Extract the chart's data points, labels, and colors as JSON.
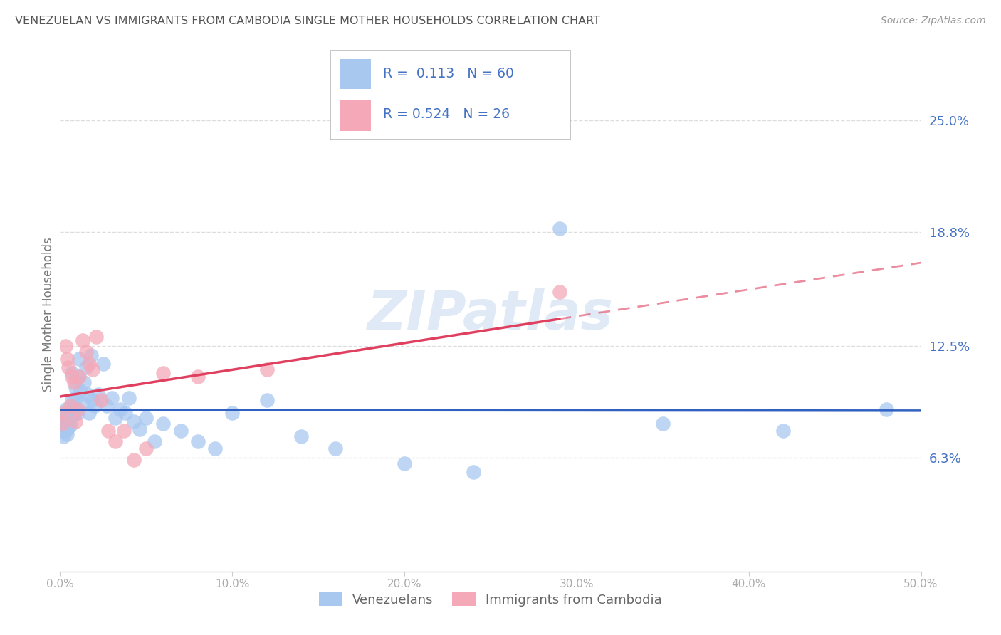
{
  "title": "VENEZUELAN VS IMMIGRANTS FROM CAMBODIA SINGLE MOTHER HOUSEHOLDS CORRELATION CHART",
  "source": "Source: ZipAtlas.com",
  "ylabel": "Single Mother Households",
  "ytick_labels": [
    "6.3%",
    "12.5%",
    "18.8%",
    "25.0%"
  ],
  "ytick_values": [
    0.063,
    0.125,
    0.188,
    0.25
  ],
  "xtick_values": [
    0.0,
    0.1,
    0.2,
    0.3,
    0.4,
    0.5
  ],
  "xtick_labels": [
    "0.0%",
    "10.0%",
    "20.0%",
    "30.0%",
    "40.0%",
    "50.0%"
  ],
  "xmin": 0.0,
  "xmax": 0.5,
  "ymin": 0.0,
  "ymax": 0.285,
  "legend_label1": "Venezuelans",
  "legend_label2": "Immigrants from Cambodia",
  "R1": 0.113,
  "N1": 60,
  "R2": 0.524,
  "N2": 26,
  "color_blue": "#A8C8F0",
  "color_pink": "#F4A8B8",
  "color_blue_line": "#3060C0",
  "color_pink_line": "#E04060",
  "color_title": "#555555",
  "color_ytick": "#4472C4",
  "color_xtick": "#AAAAAA",
  "watermark": "ZIPatlas",
  "watermark_color": "#C8D8F0",
  "venezuelan_x": [
    0.001,
    0.001,
    0.002,
    0.002,
    0.002,
    0.003,
    0.003,
    0.003,
    0.004,
    0.004,
    0.004,
    0.005,
    0.005,
    0.005,
    0.006,
    0.006,
    0.007,
    0.007,
    0.008,
    0.008,
    0.009,
    0.009,
    0.01,
    0.01,
    0.011,
    0.012,
    0.013,
    0.014,
    0.015,
    0.016,
    0.017,
    0.018,
    0.019,
    0.02,
    0.022,
    0.025,
    0.027,
    0.03,
    0.032,
    0.035,
    0.038,
    0.04,
    0.043,
    0.046,
    0.05,
    0.055,
    0.06,
    0.07,
    0.08,
    0.09,
    0.1,
    0.12,
    0.14,
    0.16,
    0.2,
    0.24,
    0.29,
    0.35,
    0.42,
    0.48
  ],
  "venezuelan_y": [
    0.083,
    0.078,
    0.085,
    0.08,
    0.075,
    0.09,
    0.083,
    0.078,
    0.082,
    0.079,
    0.076,
    0.088,
    0.084,
    0.08,
    0.086,
    0.081,
    0.11,
    0.095,
    0.092,
    0.087,
    0.102,
    0.096,
    0.108,
    0.088,
    0.118,
    0.1,
    0.093,
    0.105,
    0.113,
    0.098,
    0.088,
    0.12,
    0.095,
    0.092,
    0.098,
    0.115,
    0.092,
    0.096,
    0.085,
    0.09,
    0.088,
    0.096,
    0.083,
    0.079,
    0.085,
    0.072,
    0.082,
    0.078,
    0.072,
    0.068,
    0.088,
    0.095,
    0.075,
    0.068,
    0.06,
    0.055,
    0.19,
    0.082,
    0.078,
    0.09
  ],
  "cambodia_x": [
    0.001,
    0.002,
    0.003,
    0.004,
    0.005,
    0.006,
    0.007,
    0.008,
    0.009,
    0.01,
    0.011,
    0.013,
    0.015,
    0.017,
    0.019,
    0.021,
    0.024,
    0.028,
    0.032,
    0.037,
    0.043,
    0.05,
    0.06,
    0.08,
    0.12,
    0.29
  ],
  "cambodia_y": [
    0.082,
    0.088,
    0.125,
    0.118,
    0.113,
    0.092,
    0.108,
    0.105,
    0.083,
    0.09,
    0.108,
    0.128,
    0.122,
    0.115,
    0.112,
    0.13,
    0.095,
    0.078,
    0.072,
    0.078,
    0.062,
    0.068,
    0.11,
    0.108,
    0.112,
    0.155
  ]
}
